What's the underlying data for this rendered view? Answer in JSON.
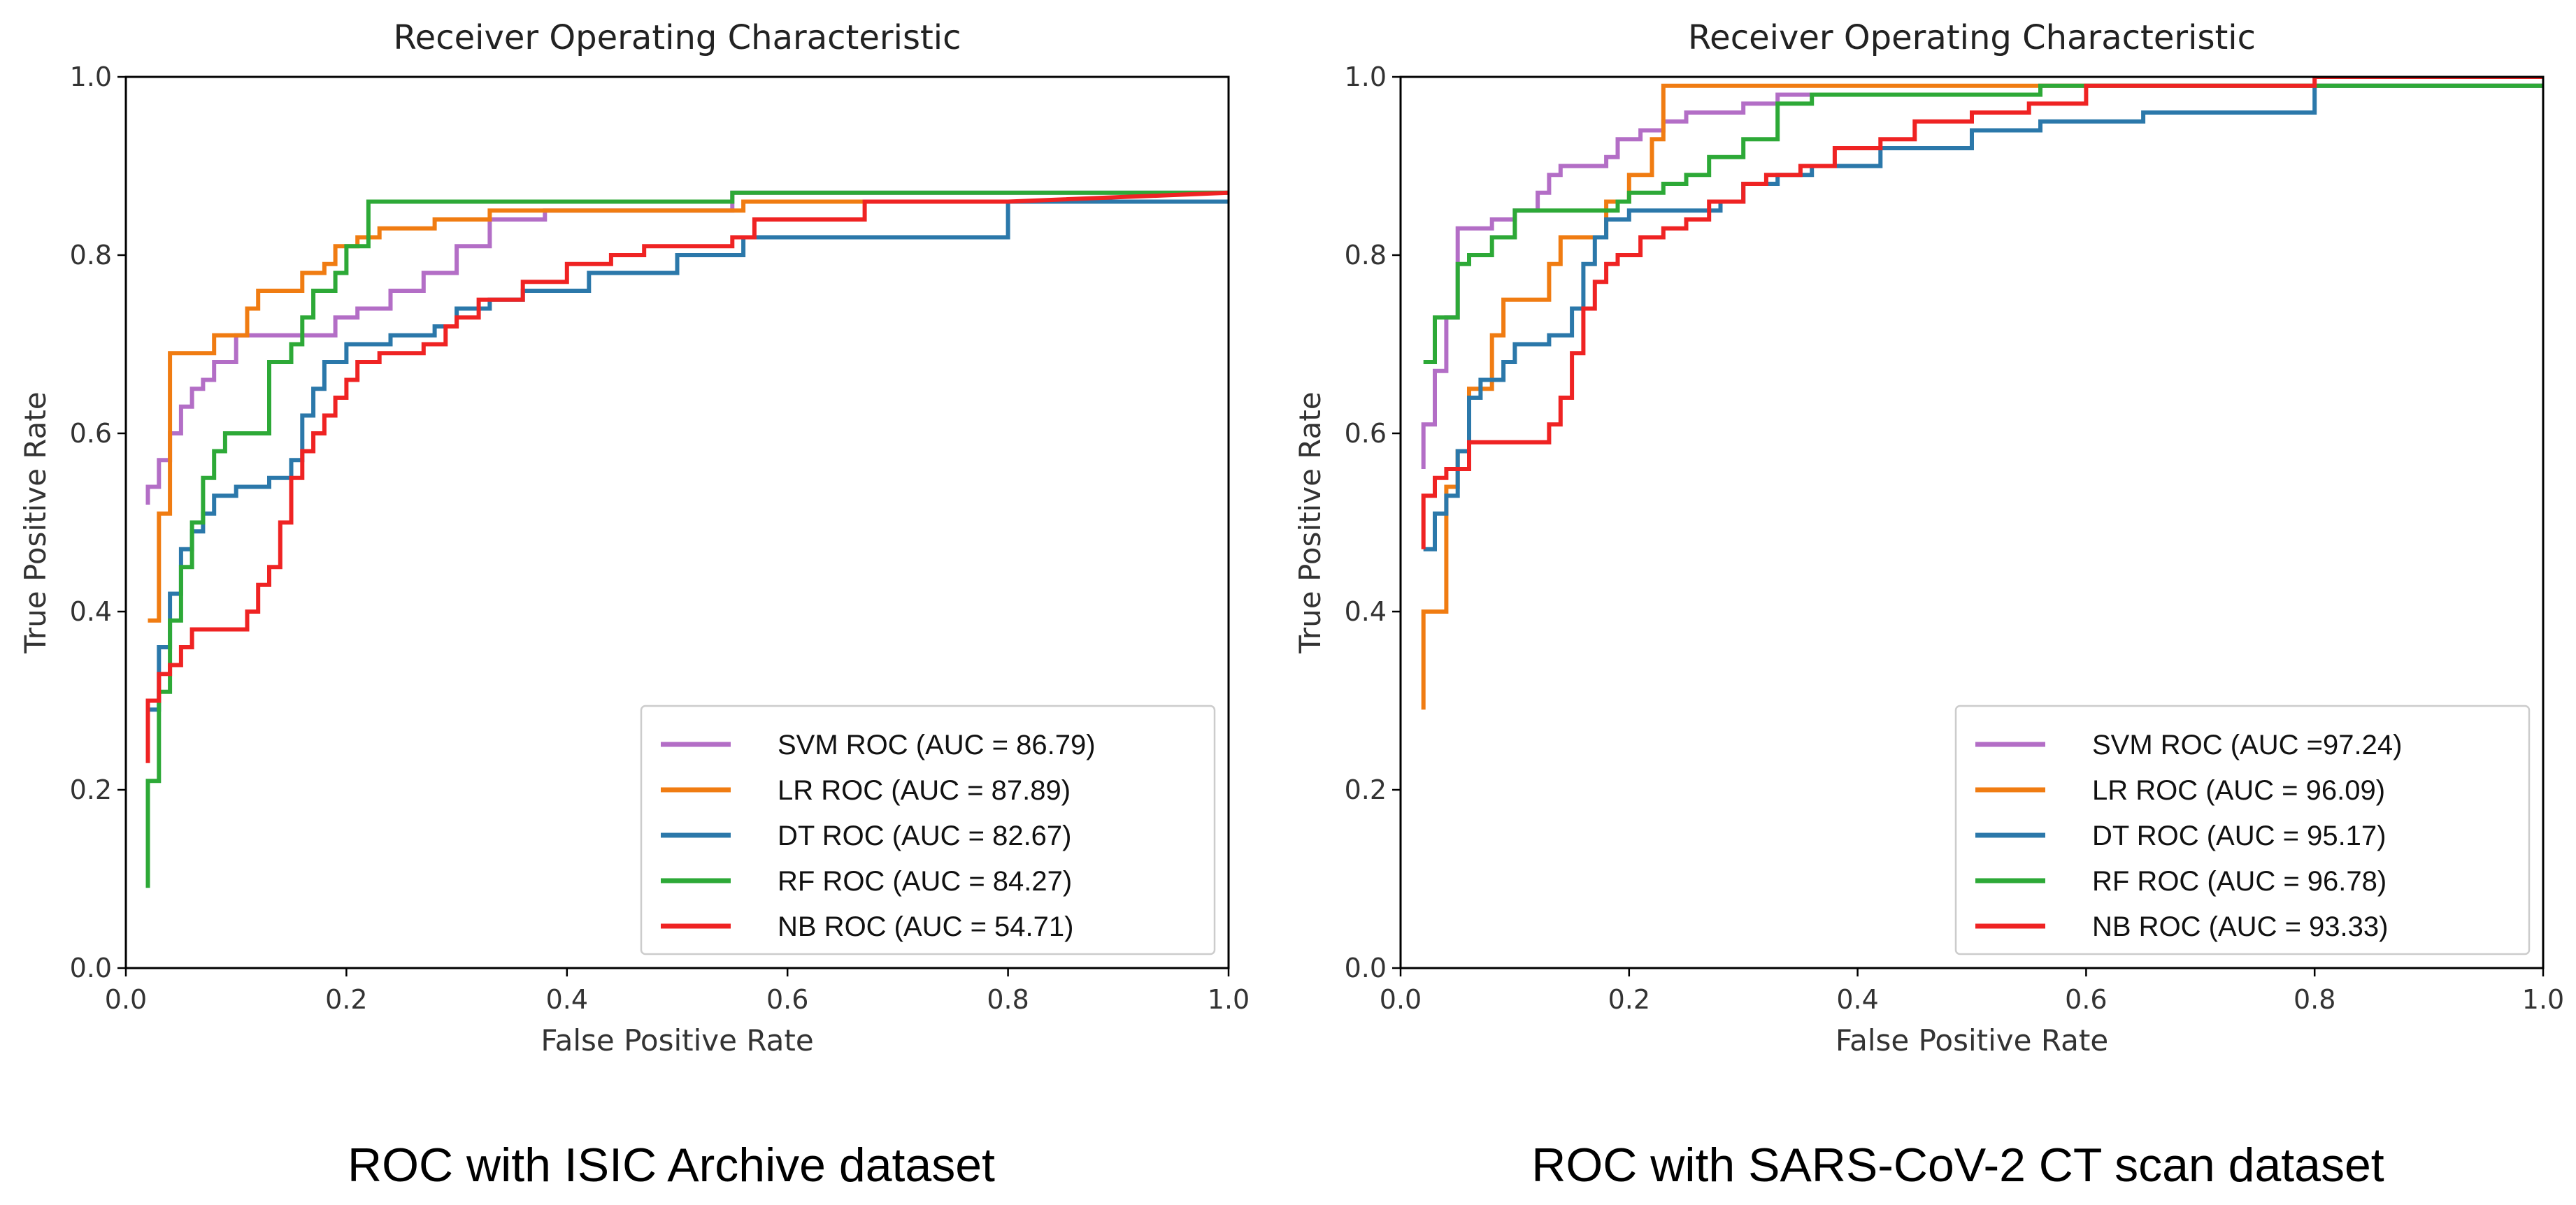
{
  "chart_data": [
    {
      "type": "line",
      "title": "Receiver Operating Characteristic",
      "xlabel": "False Positive Rate",
      "ylabel": "True Positive Rate",
      "caption": "ROC with ISIC Archive dataset",
      "xlim": [
        0.0,
        1.0
      ],
      "ylim": [
        0.0,
        1.0
      ],
      "xticks": [
        "0.0",
        "0.2",
        "0.4",
        "0.6",
        "0.8",
        "1.0"
      ],
      "yticks": [
        "0.0",
        "0.2",
        "0.4",
        "0.6",
        "0.8",
        "1.0"
      ],
      "legend_position": "lower-right",
      "series": [
        {
          "name": "SVM ROC (AUC = 86.79)",
          "color": "#b36ec6",
          "x": [
            0.02,
            0.02,
            0.03,
            0.03,
            0.04,
            0.04,
            0.05,
            0.05,
            0.06,
            0.06,
            0.07,
            0.07,
            0.08,
            0.08,
            0.1,
            0.1,
            0.13,
            0.13,
            0.19,
            0.19,
            0.21,
            0.21,
            0.24,
            0.24,
            0.27,
            0.27,
            0.3,
            0.3,
            0.33,
            0.33,
            0.38,
            0.38,
            0.55,
            0.55,
            1.0
          ],
          "y": [
            0.52,
            0.54,
            0.54,
            0.57,
            0.57,
            0.6,
            0.6,
            0.63,
            0.63,
            0.65,
            0.65,
            0.66,
            0.66,
            0.68,
            0.68,
            0.71,
            0.71,
            0.71,
            0.71,
            0.73,
            0.73,
            0.74,
            0.74,
            0.76,
            0.76,
            0.78,
            0.78,
            0.81,
            0.81,
            0.84,
            0.84,
            0.85,
            0.85,
            0.87,
            0.87
          ]
        },
        {
          "name": "LR ROC (AUC = 87.89)",
          "color": "#f07c12",
          "x": [
            0.02,
            0.02,
            0.03,
            0.03,
            0.04,
            0.04,
            0.08,
            0.08,
            0.11,
            0.11,
            0.12,
            0.12,
            0.16,
            0.16,
            0.18,
            0.18,
            0.19,
            0.19,
            0.21,
            0.21,
            0.23,
            0.23,
            0.28,
            0.28,
            0.33,
            0.33,
            0.56,
            0.56,
            1.0
          ],
          "y": [
            0.39,
            0.39,
            0.39,
            0.51,
            0.51,
            0.69,
            0.69,
            0.71,
            0.71,
            0.74,
            0.74,
            0.76,
            0.76,
            0.78,
            0.78,
            0.79,
            0.79,
            0.81,
            0.81,
            0.82,
            0.82,
            0.83,
            0.83,
            0.84,
            0.84,
            0.85,
            0.85,
            0.86,
            0.86
          ]
        },
        {
          "name": "DT ROC (AUC = 82.67)",
          "color": "#2b78aa",
          "x": [
            0.02,
            0.03,
            0.03,
            0.04,
            0.04,
            0.05,
            0.05,
            0.06,
            0.06,
            0.07,
            0.07,
            0.08,
            0.08,
            0.1,
            0.1,
            0.13,
            0.13,
            0.15,
            0.15,
            0.16,
            0.16,
            0.17,
            0.17,
            0.18,
            0.18,
            0.2,
            0.2,
            0.24,
            0.24,
            0.28,
            0.28,
            0.3,
            0.3,
            0.33,
            0.33,
            0.36,
            0.36,
            0.42,
            0.42,
            0.5,
            0.5,
            0.56,
            0.56,
            0.65,
            0.65,
            0.8,
            0.8,
            0.82,
            0.82,
            1.0
          ],
          "y": [
            0.29,
            0.29,
            0.36,
            0.36,
            0.42,
            0.42,
            0.47,
            0.47,
            0.49,
            0.49,
            0.51,
            0.51,
            0.53,
            0.53,
            0.54,
            0.54,
            0.55,
            0.55,
            0.57,
            0.57,
            0.62,
            0.62,
            0.65,
            0.65,
            0.68,
            0.68,
            0.7,
            0.7,
            0.71,
            0.71,
            0.72,
            0.72,
            0.74,
            0.74,
            0.75,
            0.75,
            0.76,
            0.76,
            0.78,
            0.78,
            0.8,
            0.8,
            0.82,
            0.82,
            0.82,
            0.82,
            0.86,
            0.86,
            0.86,
            0.86
          ]
        },
        {
          "name": "RF ROC (AUC = 84.27)",
          "color": "#2da937",
          "x": [
            0.02,
            0.02,
            0.03,
            0.03,
            0.04,
            0.04,
            0.05,
            0.05,
            0.06,
            0.06,
            0.07,
            0.07,
            0.08,
            0.08,
            0.09,
            0.09,
            0.13,
            0.13,
            0.15,
            0.15,
            0.16,
            0.16,
            0.17,
            0.17,
            0.19,
            0.19,
            0.2,
            0.2,
            0.22,
            0.22,
            0.55,
            0.55,
            1.0
          ],
          "y": [
            0.09,
            0.21,
            0.21,
            0.31,
            0.31,
            0.39,
            0.39,
            0.45,
            0.45,
            0.5,
            0.5,
            0.55,
            0.55,
            0.58,
            0.58,
            0.6,
            0.6,
            0.68,
            0.68,
            0.7,
            0.7,
            0.73,
            0.73,
            0.76,
            0.76,
            0.78,
            0.78,
            0.81,
            0.81,
            0.86,
            0.86,
            0.87,
            0.87
          ]
        },
        {
          "name": "NB ROC (AUC = 54.71)",
          "color": "#ef2323",
          "x": [
            0.02,
            0.02,
            0.03,
            0.03,
            0.04,
            0.04,
            0.05,
            0.05,
            0.06,
            0.06,
            0.09,
            0.09,
            0.11,
            0.11,
            0.12,
            0.12,
            0.13,
            0.13,
            0.14,
            0.14,
            0.15,
            0.15,
            0.16,
            0.16,
            0.17,
            0.17,
            0.18,
            0.18,
            0.19,
            0.19,
            0.2,
            0.2,
            0.21,
            0.21,
            0.23,
            0.23,
            0.27,
            0.27,
            0.29,
            0.29,
            0.3,
            0.3,
            0.32,
            0.32,
            0.36,
            0.36,
            0.4,
            0.4,
            0.44,
            0.44,
            0.47,
            0.47,
            0.55,
            0.55,
            0.57,
            0.57,
            0.67,
            0.67,
            0.8,
            0.8,
            1.0
          ],
          "y": [
            0.23,
            0.3,
            0.3,
            0.33,
            0.33,
            0.34,
            0.34,
            0.36,
            0.36,
            0.38,
            0.38,
            0.38,
            0.38,
            0.4,
            0.4,
            0.43,
            0.43,
            0.45,
            0.45,
            0.5,
            0.5,
            0.55,
            0.55,
            0.58,
            0.58,
            0.6,
            0.6,
            0.62,
            0.62,
            0.64,
            0.64,
            0.66,
            0.66,
            0.68,
            0.68,
            0.69,
            0.69,
            0.7,
            0.7,
            0.72,
            0.72,
            0.73,
            0.73,
            0.75,
            0.75,
            0.77,
            0.77,
            0.79,
            0.79,
            0.8,
            0.8,
            0.81,
            0.81,
            0.82,
            0.82,
            0.84,
            0.84,
            0.86,
            0.86,
            0.86,
            0.87
          ]
        }
      ]
    },
    {
      "type": "line",
      "title": "Receiver Operating Characteristic",
      "xlabel": "False Positive Rate",
      "ylabel": "True Positive Rate",
      "caption": "ROC with SARS-CoV-2 CT scan dataset",
      "xlim": [
        0.0,
        1.0
      ],
      "ylim": [
        0.0,
        1.0
      ],
      "xticks": [
        "0.0",
        "0.2",
        "0.4",
        "0.6",
        "0.8",
        "1.0"
      ],
      "yticks": [
        "0.0",
        "0.2",
        "0.4",
        "0.6",
        "0.8",
        "1.0"
      ],
      "legend_position": "lower-right",
      "series": [
        {
          "name": "SVM ROC (AUC =97.24)",
          "color": "#b36ec6",
          "x": [
            0.02,
            0.02,
            0.03,
            0.03,
            0.04,
            0.04,
            0.05,
            0.05,
            0.08,
            0.08,
            0.1,
            0.1,
            0.12,
            0.12,
            0.13,
            0.13,
            0.14,
            0.14,
            0.18,
            0.18,
            0.19,
            0.19,
            0.21,
            0.21,
            0.23,
            0.23,
            0.25,
            0.25,
            0.3,
            0.3,
            0.33,
            0.33,
            0.38,
            0.38,
            0.56,
            0.56,
            1.0
          ],
          "y": [
            0.56,
            0.61,
            0.61,
            0.67,
            0.67,
            0.73,
            0.73,
            0.83,
            0.83,
            0.84,
            0.84,
            0.85,
            0.85,
            0.87,
            0.87,
            0.89,
            0.89,
            0.9,
            0.9,
            0.91,
            0.91,
            0.93,
            0.93,
            0.94,
            0.94,
            0.95,
            0.95,
            0.96,
            0.96,
            0.97,
            0.97,
            0.98,
            0.98,
            0.98,
            0.98,
            0.99,
            0.99
          ]
        },
        {
          "name": "LR ROC (AUC = 96.09)",
          "color": "#f07c12",
          "x": [
            0.02,
            0.02,
            0.03,
            0.03,
            0.04,
            0.04,
            0.05,
            0.05,
            0.06,
            0.06,
            0.08,
            0.08,
            0.09,
            0.09,
            0.13,
            0.13,
            0.14,
            0.14,
            0.18,
            0.18,
            0.2,
            0.2,
            0.22,
            0.22,
            0.23,
            0.23,
            1.0
          ],
          "y": [
            0.29,
            0.4,
            0.4,
            0.4,
            0.4,
            0.54,
            0.54,
            0.58,
            0.58,
            0.65,
            0.65,
            0.71,
            0.71,
            0.75,
            0.75,
            0.79,
            0.79,
            0.82,
            0.82,
            0.86,
            0.86,
            0.89,
            0.89,
            0.93,
            0.93,
            0.99,
            0.99
          ]
        },
        {
          "name": "DT ROC (AUC = 95.17)",
          "color": "#2b78aa",
          "x": [
            0.02,
            0.03,
            0.03,
            0.04,
            0.04,
            0.05,
            0.05,
            0.06,
            0.06,
            0.07,
            0.07,
            0.09,
            0.09,
            0.1,
            0.1,
            0.13,
            0.13,
            0.15,
            0.15,
            0.16,
            0.16,
            0.17,
            0.17,
            0.18,
            0.18,
            0.2,
            0.2,
            0.23,
            0.23,
            0.28,
            0.28,
            0.3,
            0.3,
            0.33,
            0.33,
            0.36,
            0.36,
            0.42,
            0.42,
            0.5,
            0.5,
            0.56,
            0.56,
            0.65,
            0.65,
            0.8,
            0.8,
            0.82,
            0.82,
            1.0
          ],
          "y": [
            0.47,
            0.47,
            0.51,
            0.51,
            0.53,
            0.53,
            0.58,
            0.58,
            0.64,
            0.64,
            0.66,
            0.66,
            0.68,
            0.68,
            0.7,
            0.7,
            0.71,
            0.71,
            0.74,
            0.74,
            0.79,
            0.79,
            0.82,
            0.82,
            0.84,
            0.84,
            0.85,
            0.85,
            0.85,
            0.85,
            0.86,
            0.86,
            0.88,
            0.88,
            0.89,
            0.89,
            0.9,
            0.9,
            0.92,
            0.92,
            0.94,
            0.94,
            0.95,
            0.95,
            0.96,
            0.96,
            0.99,
            0.99,
            0.99,
            0.99
          ]
        },
        {
          "name": "RF ROC (AUC = 96.78)",
          "color": "#2da937",
          "x": [
            0.02,
            0.02,
            0.03,
            0.03,
            0.05,
            0.05,
            0.06,
            0.06,
            0.08,
            0.08,
            0.1,
            0.1,
            0.16,
            0.16,
            0.19,
            0.19,
            0.2,
            0.2,
            0.23,
            0.23,
            0.25,
            0.25,
            0.27,
            0.27,
            0.3,
            0.3,
            0.33,
            0.33,
            0.36,
            0.36,
            0.42,
            0.42,
            0.56,
            0.56,
            1.0
          ],
          "y": [
            0.68,
            0.68,
            0.68,
            0.73,
            0.73,
            0.79,
            0.79,
            0.8,
            0.8,
            0.82,
            0.82,
            0.85,
            0.85,
            0.85,
            0.85,
            0.86,
            0.86,
            0.87,
            0.87,
            0.88,
            0.88,
            0.89,
            0.89,
            0.91,
            0.91,
            0.93,
            0.93,
            0.97,
            0.97,
            0.98,
            0.98,
            0.98,
            0.98,
            0.99,
            0.99
          ]
        },
        {
          "name": "NB ROC (AUC = 93.33)",
          "color": "#ef2323",
          "x": [
            0.02,
            0.02,
            0.03,
            0.03,
            0.04,
            0.04,
            0.06,
            0.06,
            0.13,
            0.13,
            0.14,
            0.14,
            0.15,
            0.15,
            0.16,
            0.16,
            0.17,
            0.17,
            0.18,
            0.18,
            0.19,
            0.19,
            0.21,
            0.21,
            0.23,
            0.23,
            0.25,
            0.25,
            0.27,
            0.27,
            0.3,
            0.3,
            0.32,
            0.32,
            0.35,
            0.35,
            0.38,
            0.38,
            0.42,
            0.42,
            0.45,
            0.45,
            0.5,
            0.5,
            0.55,
            0.55,
            0.6,
            0.6,
            0.7,
            0.7,
            0.8,
            0.8,
            1.0
          ],
          "y": [
            0.47,
            0.53,
            0.53,
            0.55,
            0.55,
            0.56,
            0.56,
            0.59,
            0.59,
            0.61,
            0.61,
            0.64,
            0.64,
            0.69,
            0.69,
            0.74,
            0.74,
            0.77,
            0.77,
            0.79,
            0.79,
            0.8,
            0.8,
            0.82,
            0.82,
            0.83,
            0.83,
            0.84,
            0.84,
            0.86,
            0.86,
            0.88,
            0.88,
            0.89,
            0.89,
            0.9,
            0.9,
            0.92,
            0.92,
            0.93,
            0.93,
            0.95,
            0.95,
            0.96,
            0.96,
            0.97,
            0.97,
            0.99,
            0.99,
            0.99,
            0.99,
            1.0,
            1.0
          ]
        }
      ]
    }
  ]
}
